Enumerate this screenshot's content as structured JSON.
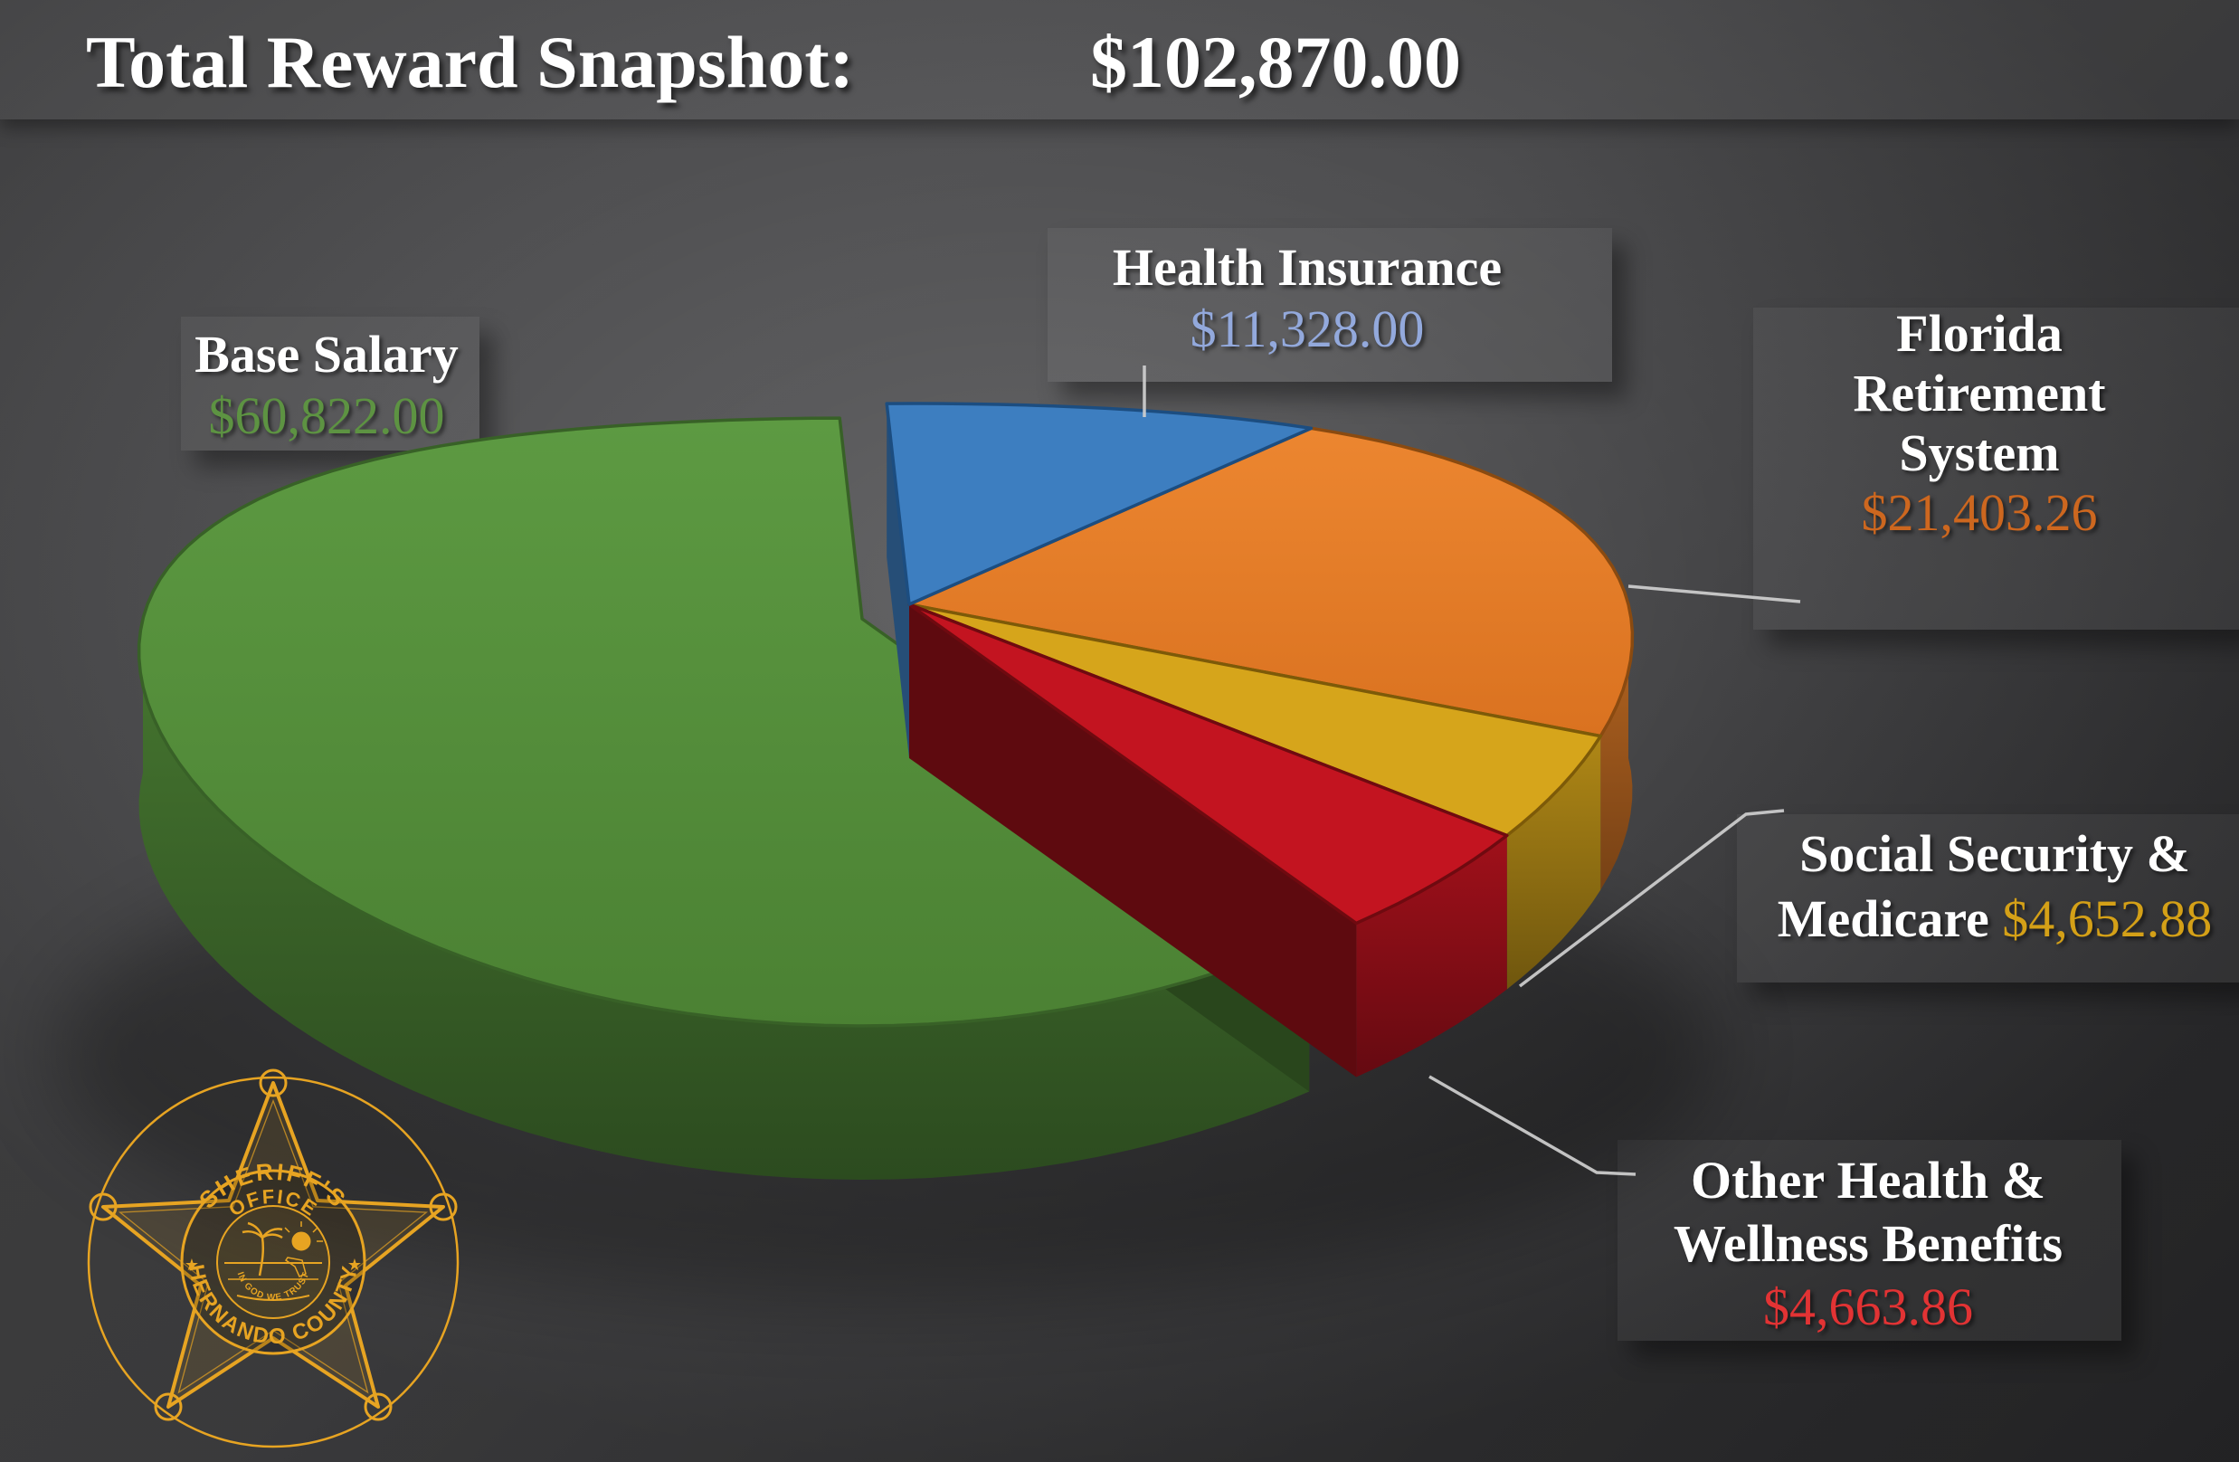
{
  "title": {
    "label": "Total Reward Snapshot:",
    "value": "$102,870.00"
  },
  "chart_data": {
    "type": "pie",
    "style": "3d-exploded-with-callouts",
    "title": "Total Reward Snapshot",
    "total": 102870.0,
    "total_label": "$102,870.00",
    "legend_position": "callout-labels-around-pie",
    "slices": [
      {
        "label": "Base Salary",
        "value": 60822.0,
        "value_label": "$60,822.00",
        "percent": 59.1,
        "color": "#55913b",
        "value_text_color": "#5d9342",
        "exploded": true
      },
      {
        "label": "Health Insurance",
        "value": 11328.0,
        "value_label": "$11,328.00",
        "percent": 11.0,
        "color": "#3d7ec0",
        "value_text_color": "#93a9dc",
        "exploded": false
      },
      {
        "label": "Florida Retirement System",
        "value": 21403.26,
        "value_label": "$21,403.26",
        "percent": 20.8,
        "color": "#e27d28",
        "value_text_color": "#cd671f",
        "exploded": false
      },
      {
        "label": "Social Security & Medicare",
        "value": 4652.88,
        "value_label": "$4,652.88",
        "percent": 4.5,
        "color": "#d6a51b",
        "value_text_color": "#d4a017",
        "exploded": false
      },
      {
        "label": "Other Health & Wellness Benefits",
        "value": 4663.86,
        "value_label": "$4,663.86",
        "percent": 4.5,
        "color": "#c31420",
        "value_text_color": "#e23334",
        "exploded": false
      }
    ]
  },
  "callouts": {
    "base_salary": {
      "line1": "Base Salary"
    },
    "health_insurance": {
      "line1": "Health Insurance"
    },
    "frs": {
      "line1": "Florida Retirement System"
    },
    "ss_medicare": {
      "line1": "Social Security &",
      "line2_prefix": "Medicare"
    },
    "other_health": {
      "line1": "Other Health &",
      "line2": "Wellness Benefits"
    }
  },
  "badge": {
    "arc_top_line1": "SHERIFF'S",
    "arc_top_line2": "OFFICE",
    "arc_bottom": "HERNANDO COUNTY",
    "motto": "IN GOD WE TRUST",
    "color": "#e7a422"
  }
}
